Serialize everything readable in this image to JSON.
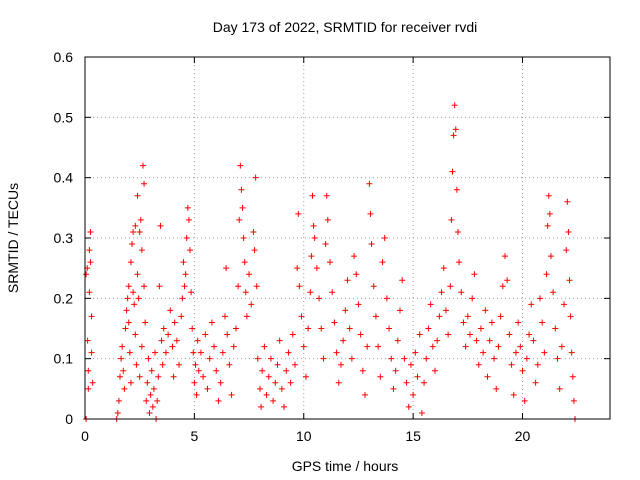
{
  "chart_data": {
    "type": "scatter",
    "title": "Day 173 of 2022, SRMTID for receiver rvdi",
    "xlabel": "GPS time / hours",
    "ylabel": "SRMTID / TECUs",
    "xlim": [
      0,
      24
    ],
    "ylim": [
      0,
      0.6
    ],
    "xticks": [
      0,
      5,
      10,
      15,
      20
    ],
    "xtick_labels": [
      "0",
      "5",
      "10",
      "15",
      "20"
    ],
    "yticks": [
      0,
      0.1,
      0.2,
      0.3,
      0.4,
      0.5,
      0.6
    ],
    "ytick_labels": [
      "0",
      "0.1",
      "0.2",
      "0.3",
      "0.4",
      "0.5",
      "0.6"
    ],
    "grid": true,
    "marker": "+",
    "color": "#ff0000",
    "series": [
      {
        "name": "SRMTID",
        "points": [
          [
            0.05,
            0.0
          ],
          [
            0.05,
            0.24
          ],
          [
            0.1,
            0.25
          ],
          [
            0.12,
            0.13
          ],
          [
            0.15,
            0.08
          ],
          [
            0.15,
            0.05
          ],
          [
            0.2,
            0.28
          ],
          [
            0.2,
            0.21
          ],
          [
            0.25,
            0.26
          ],
          [
            0.25,
            0.31
          ],
          [
            0.3,
            0.17
          ],
          [
            0.3,
            0.11
          ],
          [
            0.35,
            0.06
          ],
          [
            1.45,
            0.0
          ],
          [
            1.5,
            0.01
          ],
          [
            1.55,
            0.03
          ],
          [
            1.6,
            0.07
          ],
          [
            1.65,
            0.1
          ],
          [
            1.7,
            0.12
          ],
          [
            1.75,
            0.08
          ],
          [
            1.8,
            0.05
          ],
          [
            1.85,
            0.15
          ],
          [
            1.9,
            0.18
          ],
          [
            1.95,
            0.2
          ],
          [
            2.0,
            0.22
          ],
          [
            2.0,
            0.16
          ],
          [
            2.05,
            0.11
          ],
          [
            2.1,
            0.06
          ],
          [
            2.1,
            0.26
          ],
          [
            2.15,
            0.29
          ],
          [
            2.2,
            0.31
          ],
          [
            2.2,
            0.21
          ],
          [
            2.25,
            0.19
          ],
          [
            2.3,
            0.32
          ],
          [
            2.3,
            0.14
          ],
          [
            2.35,
            0.09
          ],
          [
            2.4,
            0.37
          ],
          [
            2.4,
            0.24
          ],
          [
            2.45,
            0.2
          ],
          [
            2.5,
            0.31
          ],
          [
            2.5,
            0.07
          ],
          [
            2.55,
            0.33
          ],
          [
            2.6,
            0.28
          ],
          [
            2.6,
            0.12
          ],
          [
            2.65,
            0.42
          ],
          [
            2.7,
            0.39
          ],
          [
            2.7,
            0.22
          ],
          [
            2.75,
            0.16
          ],
          [
            2.8,
            0.03
          ],
          [
            2.85,
            0.06
          ],
          [
            2.9,
            0.1
          ],
          [
            2.95,
            0.01
          ],
          [
            3.0,
            0.04
          ],
          [
            3.05,
            0.08
          ],
          [
            3.1,
            0.02
          ],
          [
            3.15,
            0.05
          ],
          [
            3.2,
            0.11
          ],
          [
            3.25,
            0.0
          ],
          [
            3.3,
            0.03
          ],
          [
            3.35,
            0.07
          ],
          [
            3.4,
            0.22
          ],
          [
            3.45,
            0.32
          ],
          [
            3.5,
            0.13
          ],
          [
            3.55,
            0.09
          ],
          [
            3.6,
            0.15
          ],
          [
            3.7,
            0.11
          ],
          [
            3.8,
            0.14
          ],
          [
            3.9,
            0.18
          ],
          [
            4.0,
            0.12
          ],
          [
            4.05,
            0.07
          ],
          [
            4.1,
            0.16
          ],
          [
            4.2,
            0.13
          ],
          [
            4.3,
            0.09
          ],
          [
            4.4,
            0.17
          ],
          [
            4.45,
            0.2
          ],
          [
            4.5,
            0.26
          ],
          [
            4.55,
            0.22
          ],
          [
            4.6,
            0.24
          ],
          [
            4.65,
            0.3
          ],
          [
            4.7,
            0.35
          ],
          [
            4.75,
            0.33
          ],
          [
            4.8,
            0.28
          ],
          [
            4.85,
            0.21
          ],
          [
            4.9,
            0.15
          ],
          [
            4.95,
            0.11
          ],
          [
            5.0,
            0.06
          ],
          [
            5.05,
            0.09
          ],
          [
            5.1,
            0.04
          ],
          [
            5.15,
            0.13
          ],
          [
            5.2,
            0.08
          ],
          [
            5.3,
            0.11
          ],
          [
            5.4,
            0.07
          ],
          [
            5.5,
            0.14
          ],
          [
            5.6,
            0.05
          ],
          [
            5.7,
            0.1
          ],
          [
            5.8,
            0.16
          ],
          [
            5.9,
            0.12
          ],
          [
            6.0,
            0.08
          ],
          [
            6.1,
            0.03
          ],
          [
            6.2,
            0.06
          ],
          [
            6.3,
            0.11
          ],
          [
            6.4,
            0.17
          ],
          [
            6.45,
            0.25
          ],
          [
            6.5,
            0.14
          ],
          [
            6.6,
            0.09
          ],
          [
            6.7,
            0.04
          ],
          [
            6.8,
            0.12
          ],
          [
            6.9,
            0.15
          ],
          [
            7.0,
            0.22
          ],
          [
            7.05,
            0.33
          ],
          [
            7.1,
            0.42
          ],
          [
            7.15,
            0.38
          ],
          [
            7.2,
            0.35
          ],
          [
            7.25,
            0.3
          ],
          [
            7.3,
            0.26
          ],
          [
            7.35,
            0.21
          ],
          [
            7.4,
            0.17
          ],
          [
            7.5,
            0.24
          ],
          [
            7.6,
            0.19
          ],
          [
            7.7,
            0.31
          ],
          [
            7.75,
            0.28
          ],
          [
            7.8,
            0.4
          ],
          [
            7.85,
            0.22
          ],
          [
            7.9,
            0.1
          ],
          [
            8.0,
            0.05
          ],
          [
            8.05,
            0.02
          ],
          [
            8.1,
            0.08
          ],
          [
            8.2,
            0.12
          ],
          [
            8.3,
            0.04
          ],
          [
            8.4,
            0.07
          ],
          [
            8.5,
            0.1
          ],
          [
            8.6,
            0.03
          ],
          [
            8.7,
            0.06
          ],
          [
            8.8,
            0.09
          ],
          [
            8.9,
            0.13
          ],
          [
            9.0,
            0.05
          ],
          [
            9.1,
            0.02
          ],
          [
            9.2,
            0.08
          ],
          [
            9.3,
            0.11
          ],
          [
            9.4,
            0.06
          ],
          [
            9.5,
            0.14
          ],
          [
            9.6,
            0.09
          ],
          [
            9.7,
            0.25
          ],
          [
            9.75,
            0.34
          ],
          [
            9.8,
            0.22
          ],
          [
            9.9,
            0.17
          ],
          [
            10.0,
            0.12
          ],
          [
            10.1,
            0.07
          ],
          [
            10.2,
            0.15
          ],
          [
            10.3,
            0.21
          ],
          [
            10.35,
            0.27
          ],
          [
            10.4,
            0.37
          ],
          [
            10.45,
            0.32
          ],
          [
            10.5,
            0.3
          ],
          [
            10.6,
            0.25
          ],
          [
            10.7,
            0.2
          ],
          [
            10.8,
            0.15
          ],
          [
            10.9,
            0.1
          ],
          [
            11.0,
            0.29
          ],
          [
            11.05,
            0.37
          ],
          [
            11.1,
            0.33
          ],
          [
            11.2,
            0.26
          ],
          [
            11.3,
            0.21
          ],
          [
            11.4,
            0.16
          ],
          [
            11.5,
            0.11
          ],
          [
            11.6,
            0.06
          ],
          [
            11.7,
            0.09
          ],
          [
            11.8,
            0.13
          ],
          [
            11.9,
            0.18
          ],
          [
            12.0,
            0.23
          ],
          [
            12.1,
            0.15
          ],
          [
            12.2,
            0.1
          ],
          [
            12.3,
            0.27
          ],
          [
            12.4,
            0.24
          ],
          [
            12.5,
            0.19
          ],
          [
            12.6,
            0.14
          ],
          [
            12.7,
            0.08
          ],
          [
            12.8,
            0.04
          ],
          [
            12.9,
            0.12
          ],
          [
            13.0,
            0.39
          ],
          [
            13.05,
            0.34
          ],
          [
            13.1,
            0.29
          ],
          [
            13.2,
            0.22
          ],
          [
            13.3,
            0.17
          ],
          [
            13.4,
            0.12
          ],
          [
            13.5,
            0.07
          ],
          [
            13.6,
            0.26
          ],
          [
            13.7,
            0.3
          ],
          [
            13.8,
            0.2
          ],
          [
            13.9,
            0.15
          ],
          [
            14.0,
            0.1
          ],
          [
            14.1,
            0.05
          ],
          [
            14.2,
            0.08
          ],
          [
            14.3,
            0.13
          ],
          [
            14.4,
            0.18
          ],
          [
            14.5,
            0.23
          ],
          [
            14.6,
            0.1
          ],
          [
            14.7,
            0.06
          ],
          [
            14.8,
            0.02
          ],
          [
            14.9,
            0.09
          ],
          [
            15.0,
            0.04
          ],
          [
            15.1,
            0.11
          ],
          [
            15.2,
            0.07
          ],
          [
            15.3,
            0.14
          ],
          [
            15.4,
            0.01
          ],
          [
            15.5,
            0.06
          ],
          [
            15.6,
            0.1
          ],
          [
            15.7,
            0.15
          ],
          [
            15.8,
            0.19
          ],
          [
            15.9,
            0.12
          ],
          [
            16.0,
            0.08
          ],
          [
            16.1,
            0.13
          ],
          [
            16.2,
            0.17
          ],
          [
            16.3,
            0.21
          ],
          [
            16.4,
            0.25
          ],
          [
            16.5,
            0.18
          ],
          [
            16.6,
            0.14
          ],
          [
            16.7,
            0.22
          ],
          [
            16.75,
            0.33
          ],
          [
            16.8,
            0.41
          ],
          [
            16.85,
            0.47
          ],
          [
            16.9,
            0.52
          ],
          [
            16.95,
            0.48
          ],
          [
            17.0,
            0.38
          ],
          [
            17.05,
            0.31
          ],
          [
            17.1,
            0.26
          ],
          [
            17.2,
            0.21
          ],
          [
            17.3,
            0.16
          ],
          [
            17.4,
            0.12
          ],
          [
            17.5,
            0.17
          ],
          [
            17.6,
            0.14
          ],
          [
            17.7,
            0.2
          ],
          [
            17.8,
            0.24
          ],
          [
            17.9,
            0.13
          ],
          [
            18.0,
            0.09
          ],
          [
            18.1,
            0.15
          ],
          [
            18.2,
            0.11
          ],
          [
            18.3,
            0.18
          ],
          [
            18.4,
            0.07
          ],
          [
            18.5,
            0.13
          ],
          [
            18.6,
            0.16
          ],
          [
            18.7,
            0.1
          ],
          [
            18.8,
            0.05
          ],
          [
            18.9,
            0.12
          ],
          [
            19.0,
            0.17
          ],
          [
            19.1,
            0.22
          ],
          [
            19.2,
            0.27
          ],
          [
            19.3,
            0.23
          ],
          [
            19.4,
            0.14
          ],
          [
            19.5,
            0.09
          ],
          [
            19.6,
            0.04
          ],
          [
            19.7,
            0.11
          ],
          [
            19.8,
            0.16
          ],
          [
            19.9,
            0.12
          ],
          [
            20.0,
            0.08
          ],
          [
            20.1,
            0.03
          ],
          [
            20.2,
            0.1
          ],
          [
            20.3,
            0.14
          ],
          [
            20.4,
            0.19
          ],
          [
            20.5,
            0.13
          ],
          [
            20.6,
            0.06
          ],
          [
            20.7,
            0.09
          ],
          [
            20.8,
            0.2
          ],
          [
            20.9,
            0.16
          ],
          [
            21.0,
            0.11
          ],
          [
            21.1,
            0.24
          ],
          [
            21.15,
            0.32
          ],
          [
            21.2,
            0.37
          ],
          [
            21.25,
            0.34
          ],
          [
            21.3,
            0.27
          ],
          [
            21.4,
            0.21
          ],
          [
            21.5,
            0.15
          ],
          [
            21.6,
            0.1
          ],
          [
            21.7,
            0.05
          ],
          [
            21.8,
            0.12
          ],
          [
            21.9,
            0.19
          ],
          [
            22.0,
            0.28
          ],
          [
            22.05,
            0.36
          ],
          [
            22.1,
            0.31
          ],
          [
            22.15,
            0.23
          ],
          [
            22.2,
            0.17
          ],
          [
            22.25,
            0.11
          ],
          [
            22.3,
            0.07
          ],
          [
            22.35,
            0.03
          ],
          [
            22.4,
            0.0
          ]
        ]
      }
    ]
  }
}
